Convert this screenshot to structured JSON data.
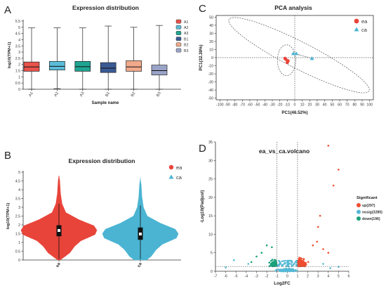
{
  "panels": {
    "a": {
      "letter": "A"
    },
    "b": {
      "letter": "B"
    },
    "c": {
      "letter": "C"
    },
    "d": {
      "letter": "D"
    }
  },
  "colors": {
    "ea": "#e8443a",
    "ca": "#4bb4d3",
    "up": "#ee4d2f",
    "nosig": "#56b9d6",
    "down": "#1aa17a",
    "axis": "#333333",
    "guide": "#555555"
  },
  "chart_data": [
    {
      "id": "A",
      "type": "box",
      "title": "Expression distribution",
      "xlabel": "Sample name",
      "ylabel": "log10(TPM+1)",
      "ylim": [
        0,
        5.5
      ],
      "yticks": [
        "0",
        "0.5",
        "1",
        "1.5",
        "2",
        "2.5",
        "3",
        "3.5",
        "4",
        "4.5",
        "5",
        "5.5"
      ],
      "legend_position": "top-right",
      "categories": [
        "A1",
        "A2",
        "A3",
        "B1",
        "B2",
        "B3"
      ],
      "series_colors": [
        "#e8534b",
        "#5bbcd9",
        "#1fa592",
        "#3a5a94",
        "#f0a98a",
        "#9aa4c8"
      ],
      "boxes": [
        {
          "min": 0.0,
          "q1": 1.45,
          "median": 1.8,
          "q3": 2.2,
          "max": 4.95
        },
        {
          "min": 0.05,
          "q1": 1.55,
          "median": 1.85,
          "q3": 2.25,
          "max": 4.95
        },
        {
          "min": 0.0,
          "q1": 1.45,
          "median": 1.82,
          "q3": 2.25,
          "max": 4.95
        },
        {
          "min": 0.0,
          "q1": 1.35,
          "median": 1.7,
          "q3": 2.15,
          "max": 5.1
        },
        {
          "min": 0.0,
          "q1": 1.45,
          "median": 1.8,
          "q3": 2.3,
          "max": 5.0
        },
        {
          "min": 0.0,
          "q1": 1.15,
          "median": 1.5,
          "q3": 1.95,
          "max": 5.15
        }
      ]
    },
    {
      "id": "B",
      "type": "violin",
      "title": "Expression distribution",
      "ylabel": "log10(TPM+1)",
      "ylim": [
        0,
        5.0
      ],
      "yticks": [
        "0",
        "0.5",
        "1",
        "1.5",
        "2",
        "2.5",
        "3",
        "3.5",
        "4",
        "4.5",
        "5"
      ],
      "legend_position": "top-right",
      "categories": [
        "ea",
        "ca"
      ],
      "groups": [
        {
          "name": "ea",
          "color": "#e8443a",
          "min": 0.05,
          "q1": 1.35,
          "median": 1.68,
          "q3": 1.98,
          "max": 3.2,
          "tail": 4.8
        },
        {
          "name": "ca",
          "color": "#4bb4d3",
          "min": 0.05,
          "q1": 1.15,
          "median": 1.48,
          "q3": 1.85,
          "max": 3.1,
          "tail": 4.7
        }
      ],
      "density_profile": [
        [
          0.0,
          0.03
        ],
        [
          0.4,
          0.28
        ],
        [
          0.8,
          0.42
        ],
        [
          1.1,
          0.58
        ],
        [
          1.45,
          0.95
        ],
        [
          1.7,
          1.0
        ],
        [
          1.95,
          0.92
        ],
        [
          2.3,
          0.52
        ],
        [
          2.7,
          0.18
        ],
        [
          3.2,
          0.08
        ],
        [
          3.8,
          0.04
        ],
        [
          4.5,
          0.02
        ],
        [
          4.8,
          0.0
        ]
      ]
    },
    {
      "id": "C",
      "type": "scatter",
      "title": "PCA analysis",
      "xlabel": "PC1(46.52%)",
      "ylabel": "PC1(32.39%)",
      "xlim": [
        -105,
        105
      ],
      "ylim": [
        -52,
        52
      ],
      "xticks": [
        -100,
        -90,
        -80,
        -70,
        -60,
        -50,
        -40,
        -30,
        -20,
        -10,
        0,
        10,
        20,
        30,
        40,
        50,
        60,
        70,
        80,
        90,
        100
      ],
      "yticks": [
        -50,
        -40,
        -30,
        -20,
        -10,
        0,
        10,
        20,
        30,
        40,
        50
      ],
      "legend_position": "top-right",
      "series": [
        {
          "name": "ea",
          "marker": "circle",
          "color": "#e8443a",
          "points": [
            [
              -12,
              -2
            ],
            [
              -9,
              -4
            ],
            [
              -10,
              -6
            ],
            [
              -13,
              -1
            ]
          ]
        },
        {
          "name": "ca",
          "marker": "triangle",
          "color": "#4bb4d3",
          "points": [
            [
              -2,
              5
            ],
            [
              2,
              5
            ],
            [
              23,
              -1
            ]
          ]
        }
      ]
    },
    {
      "id": "D",
      "type": "scatter",
      "title": "ea_vs_ca.volcano",
      "xlabel": "Log2FC",
      "ylabel": "-Log10(Padjust)",
      "xlim": [
        -7,
        6
      ],
      "ylim": [
        0,
        35
      ],
      "xticks": [
        -7,
        -6,
        -5,
        -4,
        -3,
        -2,
        -1,
        0,
        1,
        2,
        3,
        4,
        5,
        6
      ],
      "yticks": [
        0,
        5,
        10,
        15,
        20,
        25,
        30,
        35
      ],
      "thresholds": {
        "log2fc": [
          -1,
          1
        ],
        "neglog10p": 1.3
      },
      "legend_title": "Significant",
      "legend_position": "right",
      "series": [
        {
          "name": "up(297)",
          "color": "#ee4d2f",
          "count": 297,
          "highlights": [
            [
              4.0,
              34
            ],
            [
              5.0,
              27.5
            ],
            [
              4.5,
              23.2
            ],
            [
              3.2,
              15.0
            ],
            [
              3.0,
              12.0
            ],
            [
              2.9,
              8.0
            ],
            [
              2.5,
              7.0
            ],
            [
              3.5,
              6.0
            ],
            [
              4.0,
              5.0
            ]
          ]
        },
        {
          "name": "nosig(3280)",
          "color": "#56b9d6",
          "count": 3280,
          "highlights": [
            [
              -5.2,
              3.0
            ],
            [
              -3.8,
              2.0
            ],
            [
              -6.0,
              1.0
            ],
            [
              3.5,
              2.0
            ],
            [
              5.0,
              1.2
            ],
            [
              4.2,
              0.8
            ]
          ]
        },
        {
          "name": "down(196)",
          "color": "#1aa17a",
          "count": 196,
          "highlights": [
            [
              -2.0,
              7.0
            ],
            [
              -1.5,
              6.5
            ],
            [
              -3.0,
              4.0
            ],
            [
              -3.5,
              2.5
            ],
            [
              -2.5,
              5.0
            ]
          ]
        }
      ]
    }
  ]
}
